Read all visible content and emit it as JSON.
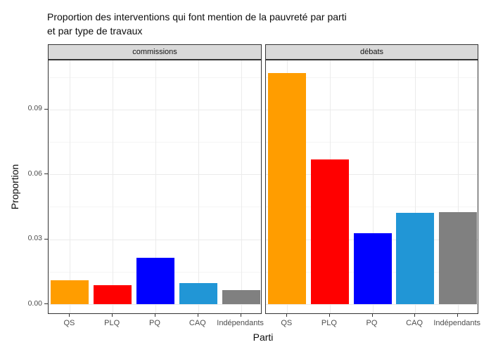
{
  "title_lines": [
    "Proportion des interventions qui font mention de la pauvreté par parti",
    "et par type de travaux"
  ],
  "chart_data": {
    "type": "bar",
    "title": "Proportion des interventions qui font mention de la pauvreté par parti et par type de travaux",
    "xlabel": "Parti",
    "ylabel": "Proportion",
    "categories": [
      "QS",
      "PLQ",
      "PQ",
      "CAQ",
      "Indépendants"
    ],
    "facets": [
      {
        "label": "commissions",
        "values": [
          0.0112,
          0.0087,
          0.0216,
          0.0096,
          0.0066
        ]
      },
      {
        "label": "débats",
        "values": [
          0.1068,
          0.0669,
          0.0327,
          0.0422,
          0.0426
        ]
      }
    ],
    "bar_colors": [
      "#FF9D00",
      "#FF0000",
      "#0000FF",
      "#2196D6",
      "#808080"
    ],
    "y_ticks": [
      {
        "value": 0.0,
        "label": "0.00"
      },
      {
        "value": 0.03,
        "label": "0.03"
      },
      {
        "value": 0.06,
        "label": "0.06"
      },
      {
        "value": 0.09,
        "label": "0.09"
      }
    ],
    "y_minor_ticks": [
      0.015,
      0.045,
      0.075,
      0.105
    ],
    "ylim": [
      -0.0046,
      0.1128
    ],
    "grid": true,
    "legend": "none"
  },
  "theme": {
    "strip_fill": "#d9d9d9",
    "panel_border": "#333333",
    "grid_major": "#ebebeb",
    "grid_minor": "#f5f5f5",
    "axis_text_color": "#4d4d4d"
  }
}
